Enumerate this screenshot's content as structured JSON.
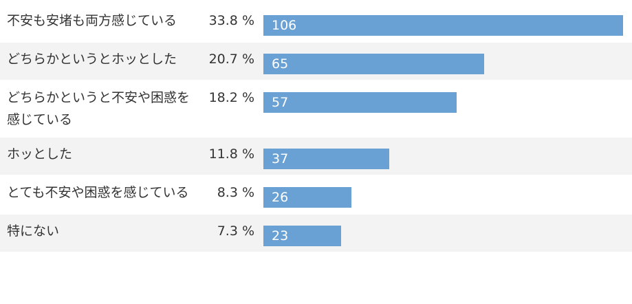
{
  "chart_data": {
    "type": "bar",
    "orientation": "horizontal",
    "color": "#6aa1d4",
    "categories": [
      "不安も安堵も両方感じている",
      "どちらかというとホッとした",
      "どちらかというと不安や困惑を感じている",
      "ホッとした",
      "とても不安や困惑を感じている",
      "特にない"
    ],
    "percent_labels": [
      "33.8 %",
      "20.7 %",
      "18.2 %",
      "11.8 %",
      "8.3 %",
      "7.3 %"
    ],
    "values": [
      106,
      65,
      57,
      37,
      26,
      23
    ]
  }
}
